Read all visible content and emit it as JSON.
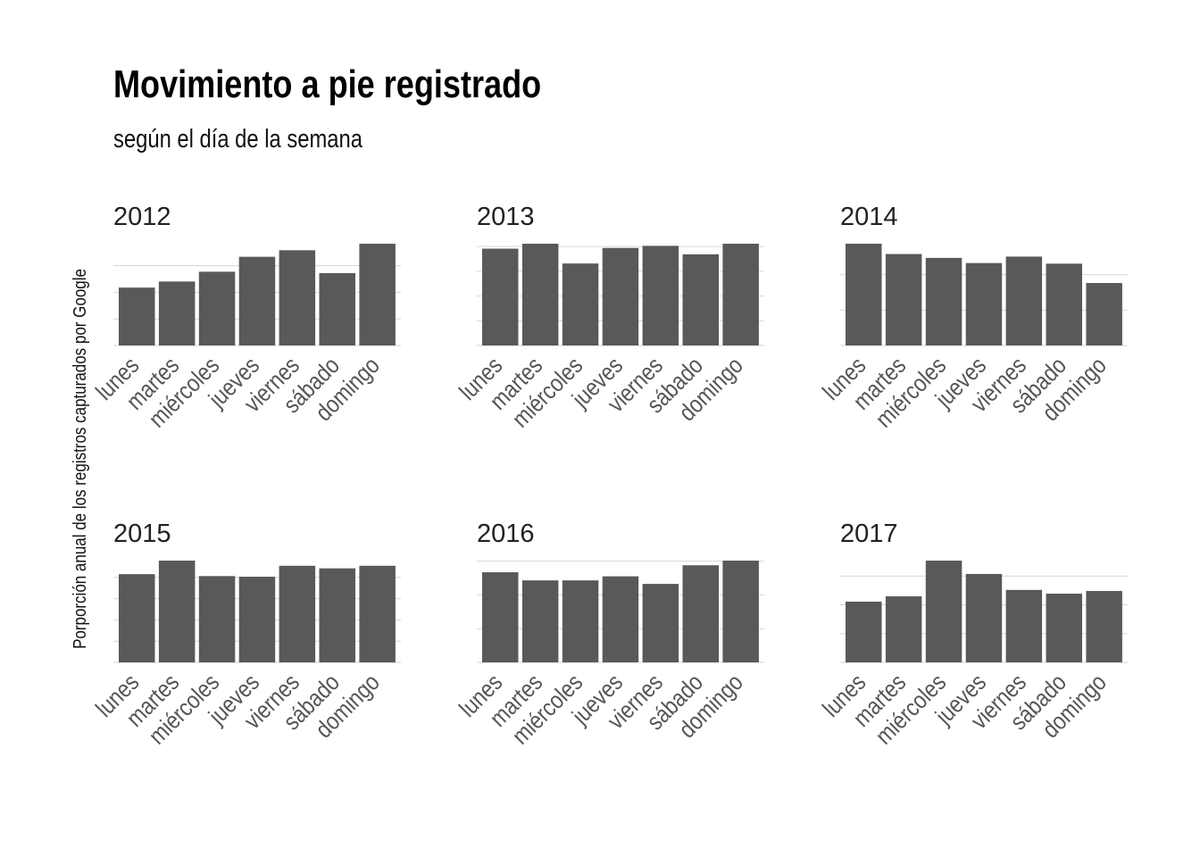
{
  "title": "Movimiento a pie registrado",
  "subtitle": "según el día de la semana",
  "chart_data": {
    "type": "bar",
    "facet": "small-multiples",
    "title": "Movimiento a pie registrado",
    "subtitle": "según el día de la semana",
    "ylabel": "Porporción anual de los registros capturados por Google",
    "xlabel": "",
    "categories": [
      "lunes",
      "martes",
      "miércoles",
      "jueves",
      "viernes",
      "sábado",
      "domingo"
    ],
    "y_tick_labels_shown": false,
    "bar_color": "#595959",
    "grid_color": "#d6d6d6",
    "panels": [
      {
        "name": "2012",
        "values": [
          0.124,
          0.137,
          0.158,
          0.19,
          0.204,
          0.155,
          0.218
        ],
        "ylim": [
          0,
          0.218
        ],
        "gridlines": [
          0,
          0.057,
          0.114,
          0.171
        ]
      },
      {
        "name": "2013",
        "values": [
          0.137,
          0.144,
          0.116,
          0.138,
          0.141,
          0.129,
          0.144
        ],
        "ylim": [
          0,
          0.144
        ],
        "gridlines": [
          0,
          0.035,
          0.07,
          0.105,
          0.14
        ]
      },
      {
        "name": "2014",
        "values": [
          0.158,
          0.142,
          0.136,
          0.128,
          0.138,
          0.127,
          0.097
        ],
        "ylim": [
          0,
          0.158
        ],
        "gridlines": [
          0,
          0.055,
          0.11
        ]
      },
      {
        "name": "2015",
        "values": [
          0.137,
          0.158,
          0.134,
          0.133,
          0.15,
          0.146,
          0.15
        ],
        "ylim": [
          0,
          0.158
        ],
        "gridlines": [
          0,
          0.033,
          0.066,
          0.099,
          0.132,
          0.165
        ]
      },
      {
        "name": "2016",
        "values": [
          0.155,
          0.141,
          0.141,
          0.148,
          0.135,
          0.167,
          0.175
        ],
        "ylim": [
          0,
          0.175
        ],
        "gridlines": [
          0,
          0.058,
          0.116,
          0.174
        ]
      },
      {
        "name": "2017",
        "values": [
          0.114,
          0.124,
          0.191,
          0.166,
          0.136,
          0.129,
          0.134
        ],
        "ylim": [
          0,
          0.191
        ],
        "gridlines": [
          0,
          0.054,
          0.108,
          0.162
        ]
      }
    ]
  }
}
